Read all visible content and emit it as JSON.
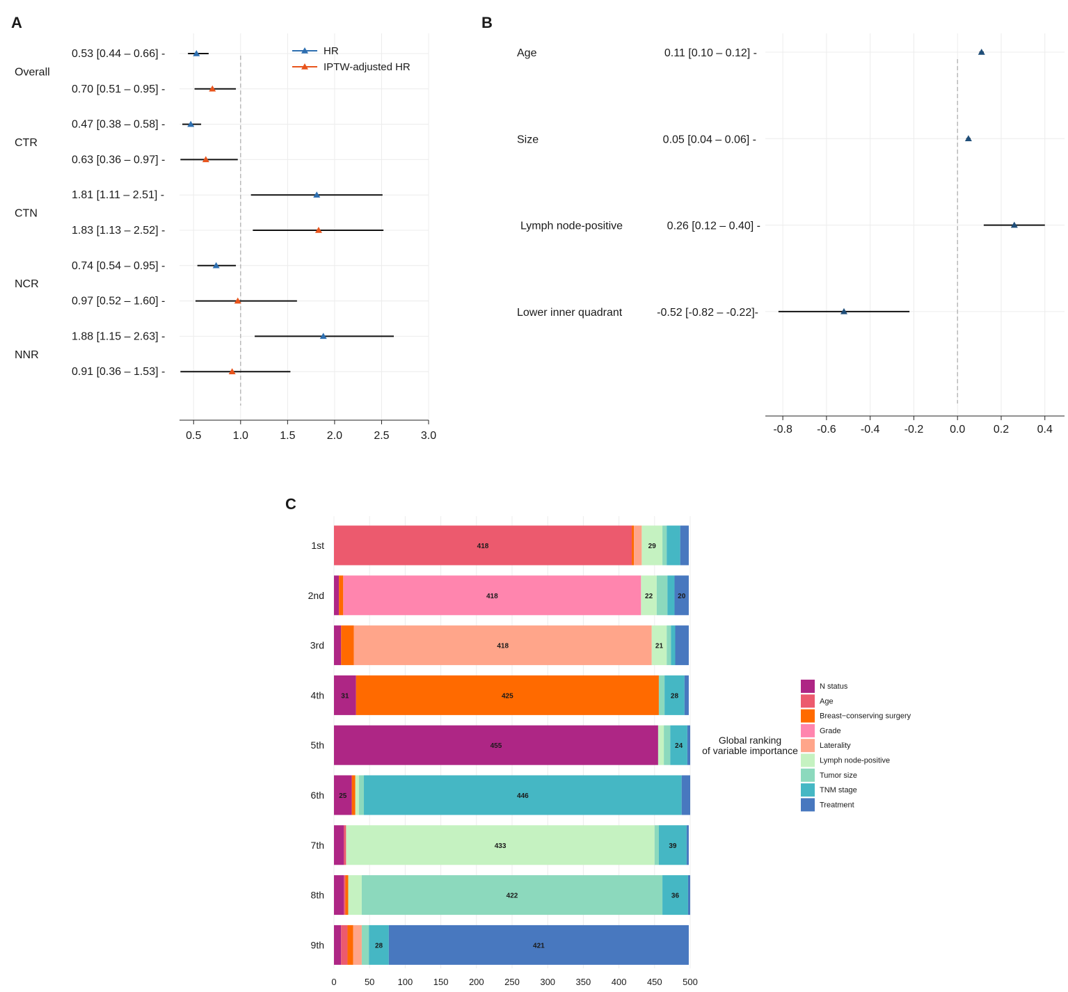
{
  "chart_data": [
    {
      "panel": "A",
      "type": "forest",
      "xlim": [
        0.35,
        3.0
      ],
      "xticks": [
        0.5,
        1.0,
        1.5,
        2.0,
        2.5,
        3.0
      ],
      "xtick_labels": [
        "0.5",
        "1.0",
        "1.5",
        "2.0",
        "2.5",
        "3.0"
      ],
      "reference_line": 1.0,
      "legend": {
        "position": "top-right",
        "entries": [
          {
            "name": "HR",
            "color": "#2e6fb0"
          },
          {
            "name": "IPTW-adjusted HR",
            "color": "#e8541c"
          }
        ]
      },
      "groups": [
        "Overall",
        "CTR",
        "CTN",
        "NCR",
        "NNR"
      ],
      "rows": [
        {
          "group": "Overall",
          "series": "HR",
          "label": "0.53 [0.44 – 0.66] -",
          "est": 0.53,
          "lo": 0.44,
          "hi": 0.66
        },
        {
          "group": "Overall",
          "series": "IPTW-adjusted HR",
          "label": "0.70 [0.51 – 0.95] -",
          "est": 0.7,
          "lo": 0.51,
          "hi": 0.95
        },
        {
          "group": "CTR",
          "series": "HR",
          "label": "0.47 [0.38 – 0.58] -",
          "est": 0.47,
          "lo": 0.38,
          "hi": 0.58
        },
        {
          "group": "CTR",
          "series": "IPTW-adjusted HR",
          "label": "0.63 [0.36 – 0.97] -",
          "est": 0.63,
          "lo": 0.36,
          "hi": 0.97
        },
        {
          "group": "CTN",
          "series": "HR",
          "label": "1.81 [1.11 – 2.51] -",
          "est": 1.81,
          "lo": 1.11,
          "hi": 2.51
        },
        {
          "group": "CTN",
          "series": "IPTW-adjusted HR",
          "label": "1.83 [1.13 – 2.52] -",
          "est": 1.83,
          "lo": 1.13,
          "hi": 2.52
        },
        {
          "group": "NCR",
          "series": "HR",
          "label": "0.74 [0.54 – 0.95] -",
          "est": 0.74,
          "lo": 0.54,
          "hi": 0.95
        },
        {
          "group": "NCR",
          "series": "IPTW-adjusted HR",
          "label": "0.97 [0.52 – 1.60] -",
          "est": 0.97,
          "lo": 0.52,
          "hi": 1.6
        },
        {
          "group": "NNR",
          "series": "HR",
          "label": "1.88 [1.15 – 2.63] -",
          "est": 1.88,
          "lo": 1.15,
          "hi": 2.63
        },
        {
          "group": "NNR",
          "series": "IPTW-adjusted HR",
          "label": "0.91 [0.36 – 1.53] -",
          "est": 0.91,
          "lo": 0.36,
          "hi": 1.53
        }
      ]
    },
    {
      "panel": "B",
      "type": "forest",
      "xlim": [
        -0.88,
        0.49
      ],
      "xticks": [
        -0.8,
        -0.6,
        -0.4,
        -0.2,
        0.0,
        0.2,
        0.4
      ],
      "xtick_labels": [
        "-0.8",
        "-0.6",
        "-0.4",
        "-0.2",
        "0.0",
        "0.2",
        "0.4"
      ],
      "reference_line": 0.0,
      "color": "#1f4e79",
      "rows": [
        {
          "name": "Age",
          "label": "0.11 [0.10 – 0.12] -",
          "est": 0.11,
          "lo": 0.1,
          "hi": 0.12
        },
        {
          "name": "Size",
          "label": "0.05 [0.04 – 0.06] -",
          "est": 0.05,
          "lo": 0.04,
          "hi": 0.06
        },
        {
          "name": "Lymph node-positive",
          "label": "0.26 [0.12 – 0.40] -",
          "est": 0.26,
          "lo": 0.12,
          "hi": 0.4
        },
        {
          "name": "Lower inner quadrant",
          "label": "-0.52 [-0.82 – -0.22]-",
          "est": -0.52,
          "lo": -0.82,
          "hi": -0.22
        }
      ]
    },
    {
      "panel": "C",
      "type": "stacked-bar-horizontal",
      "xlim": [
        0,
        500
      ],
      "xticks": [
        0,
        50,
        100,
        150,
        200,
        250,
        300,
        350,
        400,
        450,
        500
      ],
      "legend_title": [
        "Global ranking",
        "of variable importance"
      ],
      "variables": [
        "N status",
        "Age",
        "Breast−conserving surgery",
        "Grade",
        "Laterality",
        "Lymph node-positive",
        "Tumor size",
        "TNM stage",
        "Treatment"
      ],
      "colors": [
        "#ae2685",
        "#ec5a6e",
        "#ff6a00",
        "#ff85ae",
        "#ffa58a",
        "#c5f2c1",
        "#8cd9bd",
        "#45b7c4",
        "#4878bf"
      ],
      "categories": [
        "1st",
        "2nd",
        "3rd",
        "4th",
        "5th",
        "6th",
        "7th",
        "8th",
        "9th"
      ],
      "values": [
        [
          0,
          418,
          3,
          0,
          11,
          29,
          6,
          19,
          12
        ],
        [
          7,
          0,
          6,
          418,
          0,
          22,
          15,
          10,
          20
        ],
        [
          10,
          0,
          18,
          0,
          418,
          21,
          6,
          6,
          19
        ],
        [
          31,
          0,
          425,
          0,
          0,
          0,
          8,
          28,
          6
        ],
        [
          455,
          0,
          0,
          0,
          0,
          8,
          9,
          24,
          4
        ],
        [
          25,
          0,
          5,
          0,
          0,
          5,
          7,
          446,
          12
        ],
        [
          14,
          3,
          0,
          0,
          0,
          433,
          6,
          39,
          3
        ],
        [
          14,
          2,
          4,
          0,
          0,
          19,
          422,
          36,
          3
        ],
        [
          10,
          9,
          8,
          0,
          12,
          0,
          10,
          28,
          421
        ]
      ],
      "labelled_values": [
        [
          418,
          29
        ],
        [
          418,
          22,
          20
        ],
        [
          418,
          21
        ],
        [
          31,
          425,
          28
        ],
        [
          455,
          24
        ],
        [
          25,
          446
        ],
        [
          433,
          39
        ],
        [
          422,
          36
        ],
        [
          28,
          421
        ]
      ]
    }
  ],
  "panel_letters": [
    "A",
    "B",
    "C"
  ]
}
